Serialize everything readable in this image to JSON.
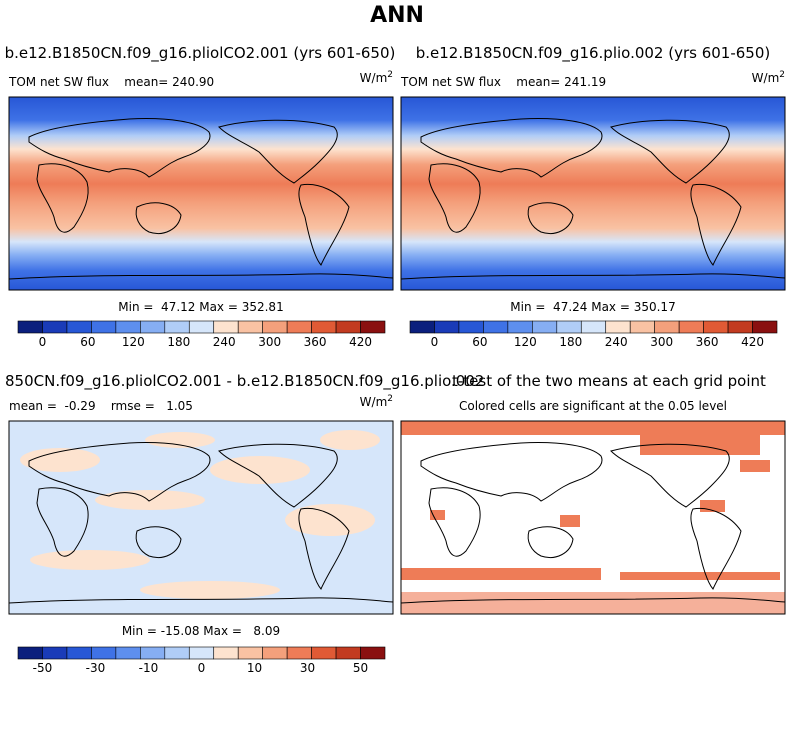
{
  "title": "ANN",
  "panels": [
    {
      "title": "b.e12.B1850CN.f09_g16.pliolCO2.001 (yrs 601-650)",
      "header_left": "TOM net SW flux    mean= 240.90",
      "units": "W/m",
      "units_exp": "2",
      "minmax": "Min =  47.12 Max = 352.81",
      "colorbar": {
        "labels": [
          "0",
          "60",
          "120",
          "180",
          "240",
          "300",
          "360",
          "420"
        ],
        "colors": [
          "#0b1f7d",
          "#1a3bb8",
          "#2757d6",
          "#3f72e6",
          "#5e8fee",
          "#86aef3",
          "#b0cdf7",
          "#d6e6fa",
          "#fde3cf",
          "#f9c2a3",
          "#f4a07c",
          "#ee7c57",
          "#e05a35",
          "#c23b20",
          "#8a1010"
        ]
      }
    },
    {
      "title": "b.e12.B1850CN.f09_g16.plio.002 (yrs 601-650)",
      "header_left": "TOM net SW flux    mean= 241.19",
      "units": "W/m",
      "units_exp": "2",
      "minmax": "Min =  47.24 Max = 350.17",
      "colorbar": {
        "labels": [
          "0",
          "60",
          "120",
          "180",
          "240",
          "300",
          "360",
          "420"
        ],
        "colors": [
          "#0b1f7d",
          "#1a3bb8",
          "#2757d6",
          "#3f72e6",
          "#5e8fee",
          "#86aef3",
          "#b0cdf7",
          "#d6e6fa",
          "#fde3cf",
          "#f9c2a3",
          "#f4a07c",
          "#ee7c57",
          "#e05a35",
          "#c23b20",
          "#8a1010"
        ]
      }
    },
    {
      "title": "850CN.f09_g16.pliolCO2.001 - b.e12.B1850CN.f09_g16.plio.002",
      "header_left": "mean =  -0.29    rmse =   1.05",
      "units": "W/m",
      "units_exp": "2",
      "minmax": "Min = -15.08 Max =   8.09",
      "colorbar": {
        "labels": [
          "-50",
          "-30",
          "-10",
          "0",
          "10",
          "30",
          "50"
        ],
        "colors": [
          "#0b1f7d",
          "#1a3bb8",
          "#2757d6",
          "#3f72e6",
          "#5e8fee",
          "#86aef3",
          "#b0cdf7",
          "#d6e6fa",
          "#fde3cf",
          "#f9c2a3",
          "#f4a07c",
          "#ee7c57",
          "#e05a35",
          "#c23b20",
          "#8a1010"
        ]
      }
    },
    {
      "title": "t-test of the two means at each grid point",
      "subtitle": "Colored cells are significant at the 0.05 level"
    }
  ]
}
